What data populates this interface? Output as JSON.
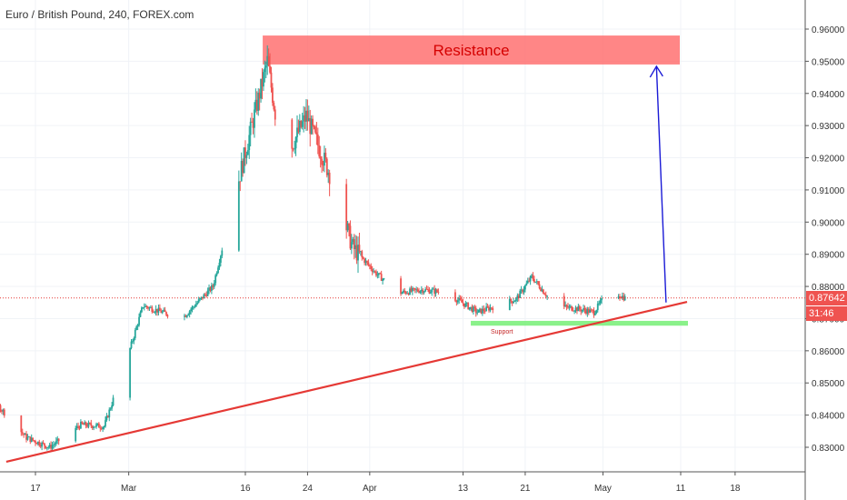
{
  "header": {
    "title": "Euro / British Pound, 240, FOREX.com"
  },
  "price_axis": {
    "current_price": "0.87642",
    "countdown": "31:46",
    "countdown_prefix": "0"
  },
  "annotations": {
    "resistance_label": "Resistance",
    "support_label": "Support"
  },
  "colors": {
    "up_candle": "#26a69a",
    "down_candle": "#ef5350",
    "resistance_zone": "#ff6b6b",
    "support_zone": "#76ee76",
    "trendline": "#e53935",
    "arrow": "#1a1ad6",
    "price_line": "#e53935"
  },
  "chart_data": {
    "type": "candlestick",
    "title": "Euro / British Pound, 240, FOREX.com",
    "xlabel": "",
    "ylabel": "",
    "x_ticks": [
      "17",
      "Mar",
      "16",
      "24",
      "Apr",
      "13",
      "21",
      "May",
      "11",
      "18"
    ],
    "y_ticks": [
      "0.96000",
      "0.95000",
      "0.94000",
      "0.93000",
      "0.92000",
      "0.91000",
      "0.90000",
      "0.89000",
      "0.88000",
      "0.87000",
      "0.86000",
      "0.85000",
      "0.84000",
      "0.83000"
    ],
    "ylim": [
      0.823,
      0.965
    ],
    "grid": true,
    "price_path": [
      {
        "x": "Feb 08",
        "y": 0.846
      },
      {
        "x": "Feb 12",
        "y": 0.844
      },
      {
        "x": "Feb 16",
        "y": 0.833
      },
      {
        "x": "Feb 19",
        "y": 0.83
      },
      {
        "x": "Feb 23",
        "y": 0.837
      },
      {
        "x": "Feb 26",
        "y": 0.8365
      },
      {
        "x": "Mar 01",
        "y": 0.858
      },
      {
        "x": "Mar 03",
        "y": 0.874
      },
      {
        "x": "Mar 08",
        "y": 0.87
      },
      {
        "x": "Mar 12",
        "y": 0.88
      },
      {
        "x": "Mar 15",
        "y": 0.91
      },
      {
        "x": "Mar 19",
        "y": 0.95
      },
      {
        "x": "Mar 21",
        "y": 0.918
      },
      {
        "x": "Mar 24",
        "y": 0.933
      },
      {
        "x": "Mar 27",
        "y": 0.915
      },
      {
        "x": "Mar 30",
        "y": 0.892
      },
      {
        "x": "Apr 02",
        "y": 0.884
      },
      {
        "x": "Apr 05",
        "y": 0.878
      },
      {
        "x": "Apr 08",
        "y": 0.879
      },
      {
        "x": "Apr 11",
        "y": 0.878
      },
      {
        "x": "Apr 15",
        "y": 0.872
      },
      {
        "x": "Apr 20",
        "y": 0.876
      },
      {
        "x": "Apr 22",
        "y": 0.883
      },
      {
        "x": "Apr 25",
        "y": 0.874
      },
      {
        "x": "Apr 28",
        "y": 0.873
      },
      {
        "x": "Apr 30",
        "y": 0.872
      },
      {
        "x": "May 02",
        "y": 0.879
      },
      {
        "x": "May 04",
        "y": 0.8764
      }
    ],
    "current_price": 0.87642,
    "resistance_zone": {
      "y_low": 0.949,
      "y_high": 0.958,
      "label": "Resistance"
    },
    "support_zone": {
      "y_low": 0.8678,
      "y_high": 0.8693,
      "label": "Support"
    },
    "trendline": [
      {
        "x": "Feb 15",
        "y": 0.8255
      },
      {
        "x": "May 11",
        "y": 0.8752
      }
    ],
    "arrow": {
      "from": {
        "x": "May 09",
        "y": 0.875
      },
      "to": {
        "x": "May 08",
        "y": 0.949
      }
    }
  }
}
